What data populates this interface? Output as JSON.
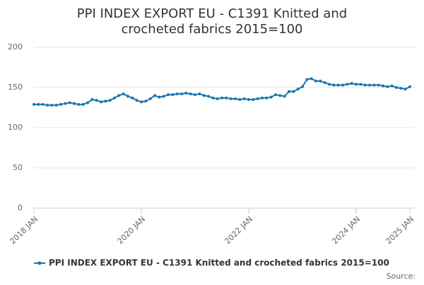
{
  "chart_data": {
    "type": "line",
    "title": "PPI INDEX EXPORT EU - C1391 Knitted and crocheted fabrics 2015=100",
    "source": "Source:",
    "categories": [
      "2018 JAN",
      null,
      null,
      null,
      null,
      null,
      null,
      null,
      null,
      null,
      null,
      null,
      null,
      null,
      null,
      null,
      null,
      null,
      null,
      null,
      null,
      null,
      null,
      null,
      "2020 JAN",
      null,
      null,
      null,
      null,
      null,
      null,
      null,
      null,
      null,
      null,
      null,
      null,
      null,
      null,
      null,
      null,
      null,
      null,
      null,
      null,
      null,
      null,
      null,
      "2022 JAN",
      null,
      null,
      null,
      null,
      null,
      null,
      null,
      null,
      null,
      null,
      null,
      null,
      null,
      null,
      null,
      null,
      null,
      null,
      null,
      null,
      null,
      null,
      null,
      "2024 JAN",
      null,
      null,
      null,
      null,
      null,
      null,
      null,
      null,
      null,
      null,
      null,
      "2025 JAN"
    ],
    "series": [
      {
        "name": "PPI INDEX EXPORT EU - C1391 Knitted and crocheted fabrics 2015=100",
        "color": "#1a76b0",
        "values": [
          129,
          129,
          129,
          128,
          128,
          128,
          129,
          130,
          131,
          130,
          129,
          129,
          131,
          135,
          134,
          132,
          133,
          134,
          137,
          140,
          142,
          139,
          137,
          134,
          132,
          133,
          136,
          140,
          138,
          139,
          141,
          141,
          142,
          142,
          143,
          142,
          141,
          142,
          140,
          139,
          137,
          136,
          137,
          137,
          136,
          136,
          135,
          136,
          135,
          135,
          136,
          137,
          137,
          138,
          141,
          140,
          139,
          145,
          145,
          148,
          151,
          160,
          161,
          158,
          158,
          156,
          154,
          153,
          153,
          153,
          154,
          155,
          154,
          154,
          153,
          153,
          153,
          153,
          152,
          151,
          152,
          150,
          149,
          148,
          151
        ]
      }
    ],
    "ylim": [
      0,
      200
    ],
    "yticks": [
      0,
      50,
      100,
      150,
      200
    ],
    "grid": true,
    "legend": "bottom"
  }
}
